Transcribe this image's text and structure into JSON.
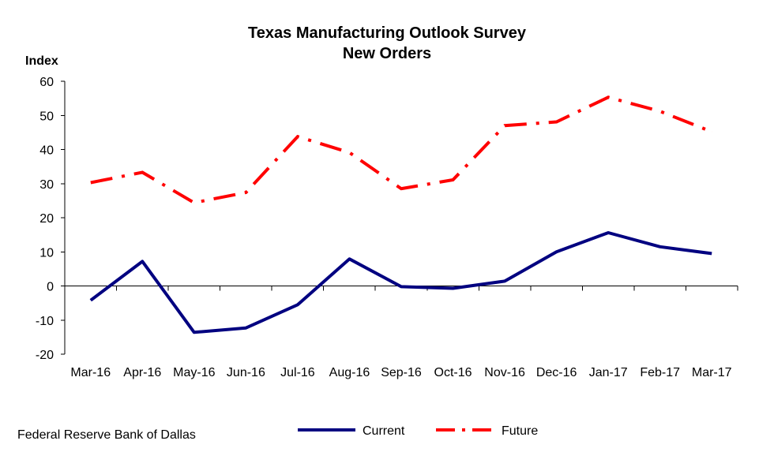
{
  "source": "Federal Reserve Bank of Dallas",
  "colors": {
    "current": "#000080",
    "future": "#ff0000"
  },
  "chart_data": {
    "type": "line",
    "title": "Texas Manufacturing Outlook Survey",
    "subtitle": "New Orders",
    "ylabel": "Index",
    "xlabel": "",
    "ylim": [
      -20,
      60
    ],
    "yticks": [
      "60",
      "50",
      "40",
      "30",
      "20",
      "10",
      "0",
      "-10",
      "-20"
    ],
    "grid": false,
    "legend_position": "bottom",
    "categories": [
      "Mar-16",
      "Apr-16",
      "May-16",
      "Jun-16",
      "Jul-16",
      "Aug-16",
      "Sep-16",
      "Oct-16",
      "Nov-16",
      "Dec-16",
      "Jan-17",
      "Feb-17",
      "Mar-17"
    ],
    "series": [
      {
        "name": "Current",
        "style": "solid",
        "values": [
          -4.2,
          7.2,
          -13.6,
          -12.3,
          -5.5,
          7.9,
          -0.2,
          -0.7,
          1.4,
          10.0,
          15.6,
          11.5,
          9.5
        ]
      },
      {
        "name": "Future",
        "style": "dash-dot",
        "values": [
          30.3,
          33.3,
          24.4,
          27.4,
          43.8,
          39.1,
          28.5,
          31.1,
          47.0,
          48.1,
          55.3,
          51.2,
          45.2
        ]
      }
    ]
  }
}
